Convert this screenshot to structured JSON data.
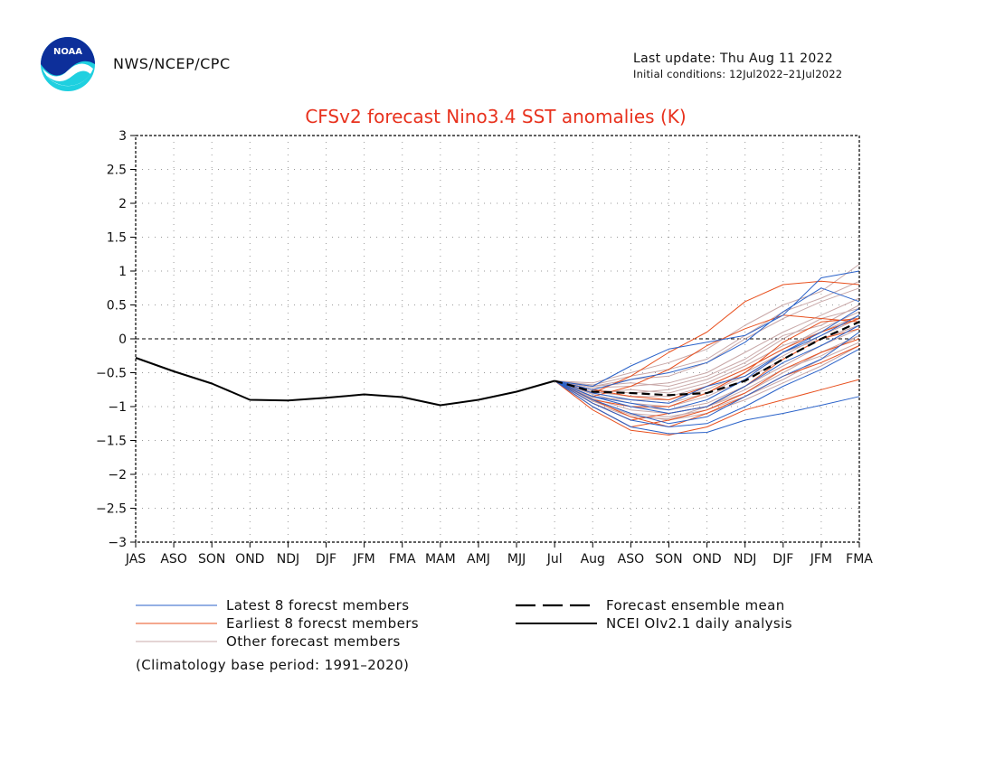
{
  "header": {
    "agency": "NWS/NCEP/CPC",
    "last_update": "Last update: Thu Aug 11 2022",
    "initial_conditions": "Initial conditions: 12Jul2022–21Jul2022",
    "logo_text": "NOAA"
  },
  "note": "(Climatology base period: 1991–2020)",
  "colors": {
    "title": "#e8321e",
    "latest": "#2a62c9",
    "earliest": "#e8501e",
    "other": "#c8a8a8",
    "analysis": "#000000"
  },
  "chart_data": {
    "type": "line",
    "title": "CFSv2 forecast Nino3.4 SST anomalies (K)",
    "categories": [
      "JAS",
      "ASO",
      "SON",
      "OND",
      "NDJ",
      "DJF",
      "JFM",
      "FMA",
      "MAM",
      "AMJ",
      "MJJ",
      "Jul",
      "Aug",
      "ASO",
      "SON",
      "OND",
      "NDJ",
      "DJF",
      "JFM",
      "FMA"
    ],
    "ylim": [
      -3,
      3
    ],
    "yticks": [
      "3",
      "2.5",
      "2",
      "1.5",
      "1",
      "0.5",
      "0",
      "−0.5",
      "−1",
      "−1.5",
      "−2",
      "−2.5",
      "−3"
    ],
    "grid": true,
    "legend": {
      "placement": "bottom",
      "entries": [
        {
          "key": "latest",
          "label": "Latest 8 forecst members"
        },
        {
          "key": "earliest",
          "label": "Earliest 8 forecst members"
        },
        {
          "key": "other",
          "label": "Other forecast members"
        },
        {
          "key": "mean",
          "label": "Forecast ensemble mean"
        },
        {
          "key": "analysis",
          "label": "NCEI OIv2.1 daily analysis"
        }
      ]
    },
    "analysis": [
      -0.28,
      -0.48,
      -0.66,
      -0.9,
      -0.91,
      -0.87,
      -0.82,
      -0.86,
      -0.98,
      -0.9,
      -0.78,
      -0.62
    ],
    "ensemble_mean": [
      -0.62,
      -0.78,
      -0.8,
      -0.83,
      -0.8,
      -0.62,
      -0.3,
      0.0,
      0.25
    ],
    "forecast_start_index": 11,
    "members": {
      "latest": [
        [
          -0.62,
          -0.7,
          -0.4,
          -0.15,
          -0.05,
          0.05,
          0.35,
          0.9,
          1.0
        ],
        [
          -0.62,
          -0.75,
          -0.6,
          -0.5,
          -0.35,
          -0.05,
          0.4,
          0.75,
          0.55
        ],
        [
          -0.62,
          -0.8,
          -0.9,
          -0.95,
          -0.7,
          -0.55,
          -0.2,
          0.1,
          0.45
        ],
        [
          -0.62,
          -0.85,
          -1.0,
          -1.1,
          -1.0,
          -0.7,
          -0.35,
          -0.1,
          0.2
        ],
        [
          -0.62,
          -0.9,
          -1.1,
          -1.25,
          -1.15,
          -0.85,
          -0.55,
          -0.3,
          0.1
        ],
        [
          -0.62,
          -0.95,
          -1.2,
          -1.3,
          -1.25,
          -1.0,
          -0.7,
          -0.45,
          -0.15
        ],
        [
          -0.62,
          -1.0,
          -1.3,
          -1.4,
          -1.38,
          -1.2,
          -1.1,
          -0.98,
          -0.85
        ],
        [
          -0.62,
          -0.85,
          -0.95,
          -1.05,
          -0.9,
          -0.6,
          -0.2,
          0.05,
          0.35
        ]
      ],
      "earliest": [
        [
          -0.62,
          -0.8,
          -0.55,
          -0.2,
          0.1,
          0.55,
          0.8,
          0.85,
          0.8
        ],
        [
          -0.62,
          -0.85,
          -0.7,
          -0.45,
          -0.1,
          0.15,
          0.35,
          0.3,
          0.25
        ],
        [
          -0.62,
          -0.9,
          -1.0,
          -1.0,
          -0.8,
          -0.5,
          -0.05,
          0.25,
          0.3
        ],
        [
          -0.62,
          -0.95,
          -1.2,
          -1.1,
          -1.0,
          -0.7,
          -0.3,
          0.0,
          0.15
        ],
        [
          -0.62,
          -1.0,
          -1.3,
          -1.2,
          -1.05,
          -0.8,
          -0.45,
          -0.2,
          0.0
        ],
        [
          -0.62,
          -1.05,
          -1.35,
          -1.42,
          -1.3,
          -1.05,
          -0.9,
          -0.75,
          -0.6
        ],
        [
          -0.62,
          -0.9,
          -1.15,
          -1.3,
          -1.1,
          -0.85,
          -0.55,
          -0.35,
          -0.1
        ],
        [
          -0.62,
          -0.75,
          -0.85,
          -0.9,
          -0.7,
          -0.45,
          -0.15,
          0.1,
          0.3
        ]
      ],
      "other": [
        [
          -0.62,
          -0.65,
          -0.5,
          -0.35,
          -0.15,
          0.2,
          0.5,
          0.7,
          1.1
        ],
        [
          -0.62,
          -0.7,
          -0.6,
          -0.55,
          -0.35,
          0.0,
          0.3,
          0.55,
          0.75
        ],
        [
          -0.62,
          -0.72,
          -0.7,
          -0.65,
          -0.5,
          -0.2,
          0.1,
          0.35,
          0.6
        ],
        [
          -0.62,
          -0.75,
          -0.8,
          -0.75,
          -0.6,
          -0.35,
          0.0,
          0.3,
          0.45
        ],
        [
          -0.62,
          -0.78,
          -0.85,
          -0.85,
          -0.7,
          -0.45,
          -0.15,
          0.15,
          0.4
        ],
        [
          -0.62,
          -0.8,
          -0.9,
          -0.95,
          -0.8,
          -0.55,
          -0.25,
          0.05,
          0.3
        ],
        [
          -0.62,
          -0.82,
          -0.95,
          -1.0,
          -0.85,
          -0.6,
          -0.3,
          0.0,
          0.2
        ],
        [
          -0.62,
          -0.85,
          -1.0,
          -1.05,
          -0.95,
          -0.7,
          -0.4,
          -0.1,
          0.15
        ],
        [
          -0.62,
          -0.88,
          -1.05,
          -1.1,
          -1.0,
          -0.8,
          -0.5,
          -0.2,
          0.05
        ],
        [
          -0.62,
          -0.9,
          -1.1,
          -1.15,
          -1.05,
          -0.85,
          -0.6,
          -0.3,
          -0.05
        ],
        [
          -0.62,
          -0.92,
          -1.12,
          -1.2,
          -1.1,
          -0.9,
          -0.65,
          -0.4,
          -0.1
        ],
        [
          -0.62,
          -0.95,
          -1.15,
          -1.18,
          -1.0,
          -0.75,
          -0.45,
          -0.25,
          0.05
        ],
        [
          -0.62,
          -0.7,
          -0.65,
          -0.7,
          -0.55,
          -0.3,
          0.05,
          0.2,
          0.5
        ],
        [
          -0.62,
          -0.68,
          -0.55,
          -0.45,
          -0.3,
          0.05,
          0.4,
          0.6,
          0.85
        ],
        [
          -0.62,
          -0.8,
          -0.75,
          -0.8,
          -0.65,
          -0.4,
          -0.1,
          0.1,
          0.35
        ],
        [
          -0.62,
          -0.86,
          -0.9,
          -0.9,
          -0.75,
          -0.5,
          -0.2,
          0.0,
          0.2
        ]
      ]
    }
  }
}
